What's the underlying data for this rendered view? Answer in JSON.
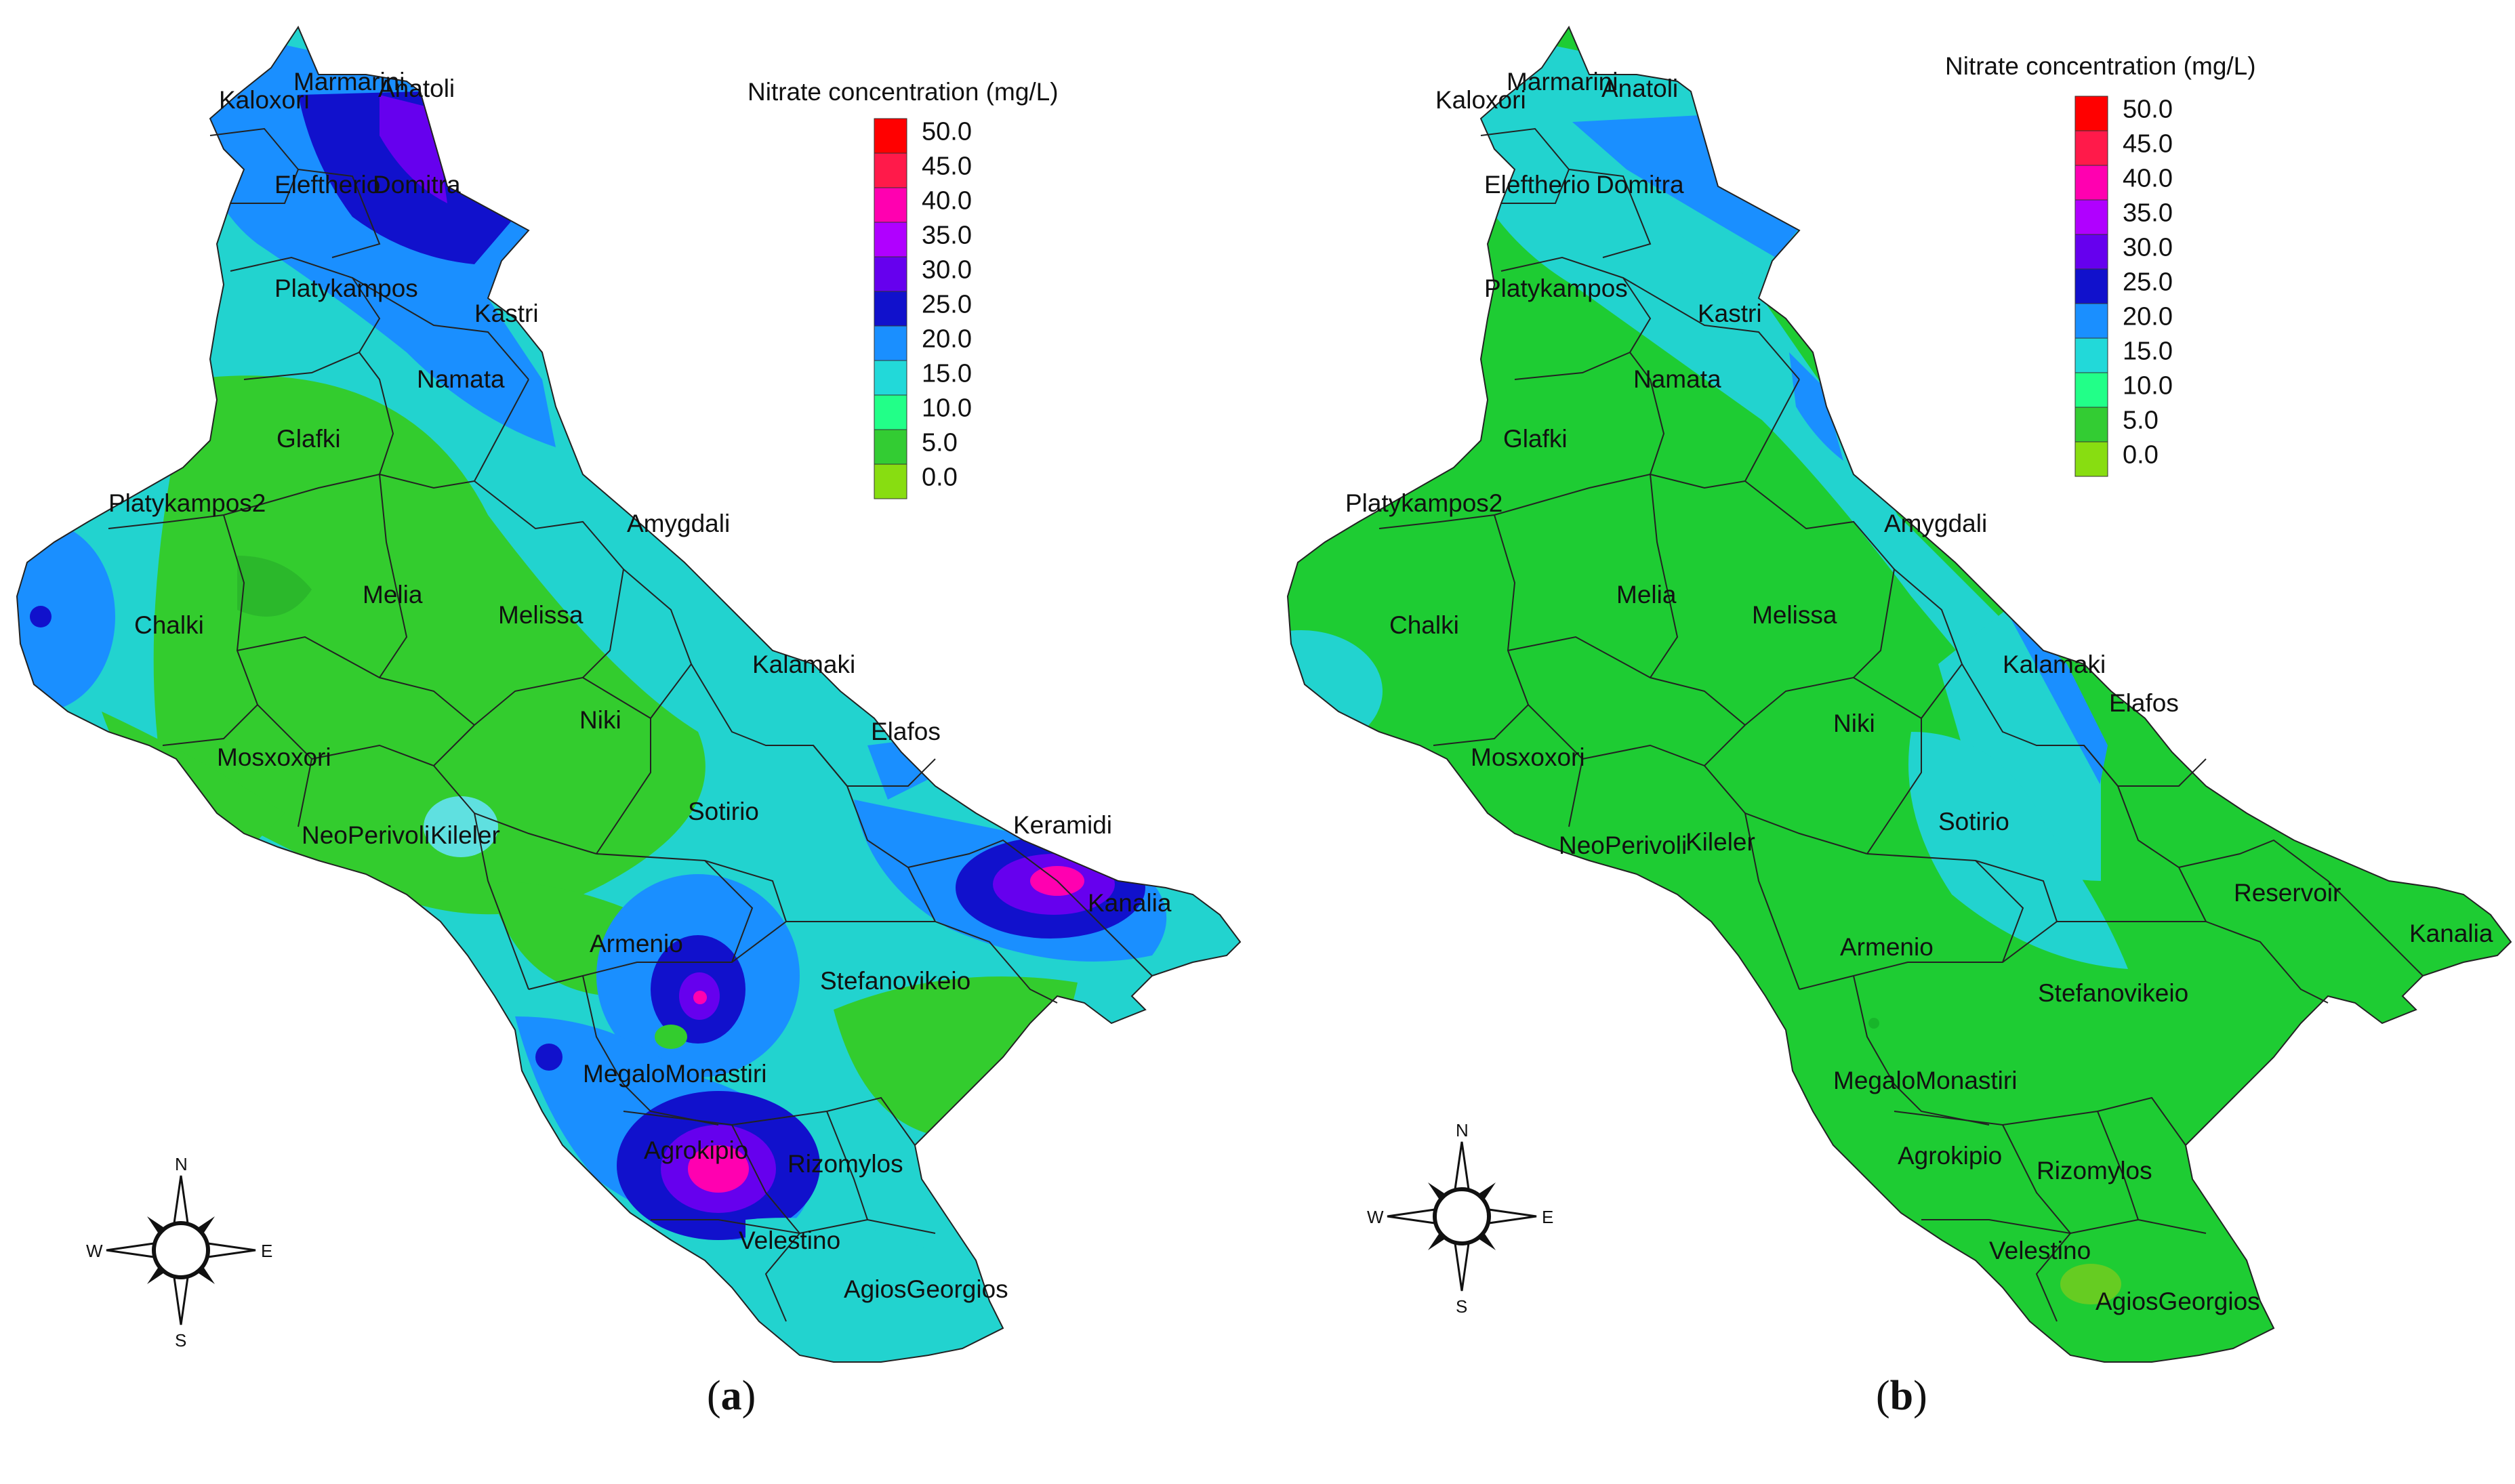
{
  "legend": {
    "title": "Nitrate concentration (mg/L)",
    "ticks": [
      "50.0",
      "45.0",
      "40.0",
      "35.0",
      "30.0",
      "25.0",
      "20.0",
      "15.0",
      "10.0",
      "5.0",
      "0.0"
    ],
    "colors": [
      "#ff0000",
      "#ff1a4a",
      "#ff00b0",
      "#b000ff",
      "#6600ee",
      "#1111cc",
      "#1a8fff",
      "#22d9d9",
      "#22ff88",
      "#33cc33",
      "#88dd11"
    ]
  },
  "compass": {
    "n": "N",
    "s": "S",
    "e": "E",
    "w": "W"
  },
  "map_a": {
    "caption_open": "(",
    "caption_letter": "a",
    "caption_close": ")",
    "labels": {
      "marmarini": "Marmarini",
      "anatoli": "Anatoli",
      "kaloxori": "Kaloxori",
      "eleftherio": "Eleftherio",
      "domitra": "Domitra",
      "platykampos": "Platykampos",
      "kastri": "Kastri",
      "namata": "Namata",
      "glafki": "Glafki",
      "platykampos2": "Platykampos2",
      "amygdali": "Amygdali",
      "melia": "Melia",
      "chalki": "Chalki",
      "melissa": "Melissa",
      "kalamaki": "Kalamaki",
      "niki": "Niki",
      "elafos": "Elafos",
      "mosxoxori": "Mosxoxori",
      "sotirio": "Sotirio",
      "keramidi": "Keramidi",
      "neoperivoli": "NeoPerivoli",
      "kileler": "Kileler",
      "kanalia": "Kanalia",
      "armenio": "Armenio",
      "stefanovikeio": "Stefanovikeio",
      "megalomonastiri": "MegaloMonastiri",
      "agrokipio": "Agrokipio",
      "rizomylos": "Rizomylos",
      "velestino": "Velestino",
      "agiosgeorgios": "AgiosGeorgios"
    }
  },
  "map_b": {
    "caption_open": "(",
    "caption_letter": "b",
    "caption_close": ")",
    "labels": {
      "marmarini": "Marmarini",
      "anatoli": "Anatoli",
      "kaloxori": "Kaloxori",
      "eleftherio": "Eleftherio",
      "domitra": "Domitra",
      "platykampos": "Platykampos",
      "kastri": "Kastri",
      "namata": "Namata",
      "glafki": "Glafki",
      "platykampos2": "Platykampos2",
      "amygdali": "Amygdali",
      "melia": "Melia",
      "melissa": "Melissa",
      "chalki": "Chalki",
      "kalamaki": "Kalamaki",
      "elafos": "Elafos",
      "niki": "Niki",
      "mosxoxori": "Mosxoxori",
      "sotirio": "Sotirio",
      "neoperivoli": "NeoPerivoli",
      "kileler": "Kileler",
      "reservoir": "Reservoir",
      "kanalia": "Kanalia",
      "armenio": "Armenio",
      "stefanovikeio": "Stefanovikeio",
      "megalomonastiri": "MegaloMonastiri",
      "agrokipio": "Agrokipio",
      "rizomylos": "Rizomylos",
      "velestino": "Velestino",
      "agiosgeorgios": "AgiosGeorgios"
    }
  }
}
